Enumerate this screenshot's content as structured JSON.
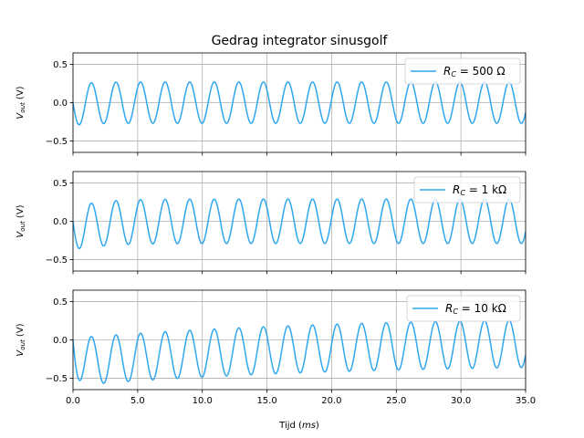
{
  "chart_data": {
    "type": "line",
    "title": "Gedrag integrator sinusgolf",
    "xlabel": "Tijd (ms)",
    "xlabel_parts": {
      "main": "Tijd (",
      "italic": "ms",
      "end": ")"
    },
    "ylabel_parts": {
      "main": "V",
      "sub": "out",
      "end": " (V)"
    },
    "xlim": [
      0,
      35
    ],
    "ylim": [
      -0.65,
      0.65
    ],
    "x_ticks": [
      0.0,
      5.0,
      10.0,
      15.0,
      20.0,
      25.0,
      30.0,
      35.0
    ],
    "x_tick_labels": [
      "0.0",
      "5.0",
      "10.0",
      "15.0",
      "20.0",
      "25.0",
      "30.0",
      "35.0"
    ],
    "y_ticks": [
      -0.5,
      0.0,
      0.5
    ],
    "y_tick_labels": [
      "−0.5",
      "0.0",
      "0.5"
    ],
    "grid": true,
    "line_color": "#2fa7ef",
    "signal_period_ms": 1.9,
    "panels": [
      {
        "legend": {
          "prefix": "R",
          "sub": "C",
          "value": " = 500 Ω"
        },
        "legend_placement": "top-right",
        "series": [
          {
            "name": "R_C = 500 Ω",
            "amplitude": 0.27,
            "offset_start": -0.04,
            "settle_ms": 1.0
          }
        ]
      },
      {
        "legend": {
          "prefix": "R",
          "sub": "C",
          "value": " = 1 kΩ"
        },
        "legend_placement": "top-right",
        "series": [
          {
            "name": "R_C = 1 kΩ",
            "amplitude": 0.29,
            "offset_start": -0.11,
            "settle_ms": 2.0
          }
        ]
      },
      {
        "legend": {
          "prefix": "R",
          "sub": "C",
          "value": " = 10 kΩ"
        },
        "legend_placement": "top-right",
        "series": [
          {
            "name": "R_C = 10 kΩ",
            "amplitude": 0.31,
            "offset_start": -0.29,
            "settle_ms": 20.0
          }
        ]
      }
    ]
  }
}
